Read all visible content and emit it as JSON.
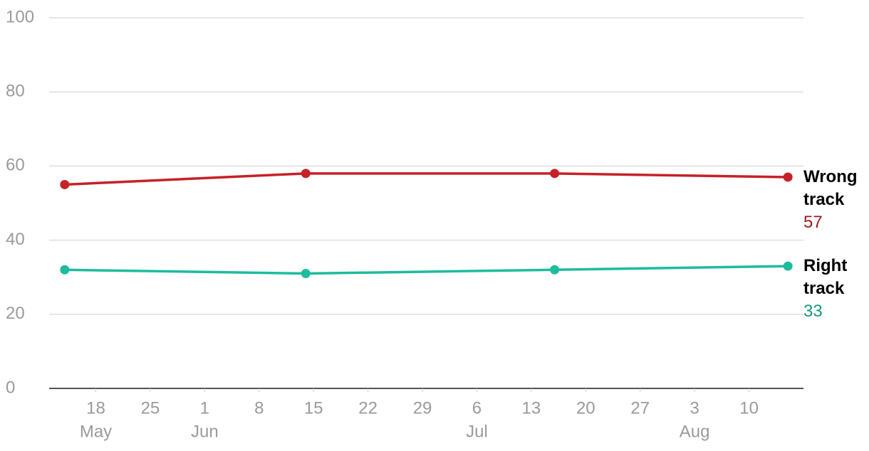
{
  "chart_data": {
    "type": "line",
    "x": [
      "May 14",
      "Jun 14",
      "Jul 16",
      "Aug 15"
    ],
    "series": [
      {
        "name": "Wrong track",
        "color": "#c62127",
        "values": [
          55,
          58,
          58,
          57
        ]
      },
      {
        "name": "Right track",
        "color": "#1dbc9e",
        "values": [
          32,
          31,
          32,
          33
        ]
      }
    ],
    "xlim": [
      "May 12",
      "Aug 17"
    ],
    "xticks": [
      {
        "value": "May 18",
        "label": "18"
      },
      {
        "value": "May 25",
        "label": "25"
      },
      {
        "value": "Jun 1",
        "label": "1"
      },
      {
        "value": "Jun 8",
        "label": "8"
      },
      {
        "value": "Jun 15",
        "label": "15"
      },
      {
        "value": "Jun 22",
        "label": "22"
      },
      {
        "value": "Jun 29",
        "label": "29"
      },
      {
        "value": "Jul 6",
        "label": "6"
      },
      {
        "value": "Jul 13",
        "label": "13"
      },
      {
        "value": "Jul 20",
        "label": "20"
      },
      {
        "value": "Jul 27",
        "label": "27"
      },
      {
        "value": "Aug 3",
        "label": "3"
      },
      {
        "value": "Aug 10",
        "label": "10"
      }
    ],
    "month_labels": [
      {
        "value": "May 18",
        "label": "May"
      },
      {
        "value": "Jun 1",
        "label": "Jun"
      },
      {
        "value": "Jul 6",
        "label": "Jul"
      },
      {
        "value": "Aug 3",
        "label": "Aug"
      }
    ],
    "ylim": [
      0,
      100
    ],
    "yticks": [
      0,
      20,
      40,
      60,
      80,
      100
    ],
    "grid": true
  }
}
